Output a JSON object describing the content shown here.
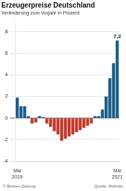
{
  "chart_data": {
    "type": "bar",
    "title": "Erzeugerpreise Deutschland",
    "subtitle": "Veränderung zum Vorjahr in Prozent",
    "categories": [
      "Mai\n2019",
      null,
      null,
      null,
      null,
      null,
      null,
      null,
      null,
      null,
      null,
      null,
      null,
      null,
      null,
      null,
      null,
      null,
      null,
      null,
      null,
      null,
      null,
      null,
      null,
      null,
      null,
      "Mai\n2021"
    ],
    "values": [
      1.9,
      1.1,
      1.1,
      0.2,
      -0.5,
      -0.4,
      0.2,
      0.1,
      -0.5,
      -0.8,
      -1.2,
      -1.5,
      -2.1,
      -1.9,
      -1.7,
      -1.5,
      -1.3,
      -1.1,
      -0.9,
      -0.7,
      -0.5,
      0.2,
      0.2,
      0.8,
      2.0,
      3.7,
      5.1,
      7.2
    ],
    "value_labels": [
      null,
      null,
      null,
      null,
      null,
      null,
      null,
      null,
      null,
      null,
      null,
      null,
      null,
      null,
      null,
      null,
      null,
      null,
      null,
      null,
      null,
      null,
      null,
      null,
      null,
      null,
      null,
      "7,2"
    ],
    "colors": [
      "#1a5e8a",
      "#1a5e8a",
      "#1a5e8a",
      "#1a5e8a",
      "#c1392b",
      "#c1392b",
      "#1a5e8a",
      "#1a5e8a",
      "#c1392b",
      "#c1392b",
      "#c1392b",
      "#c1392b",
      "#c1392b",
      "#c1392b",
      "#c1392b",
      "#c1392b",
      "#c1392b",
      "#c1392b",
      "#c1392b",
      "#c1392b",
      "#c1392b",
      "#1a5e8a",
      "#1a5e8a",
      "#1a5e8a",
      "#1a5e8a",
      "#1a5e8a",
      "#1a5e8a",
      "#1a5e8a"
    ],
    "ylim": [
      -4,
      8.8
    ],
    "yticks": [
      -4,
      -2,
      0,
      2,
      4,
      6,
      8
    ],
    "grid": true,
    "annotations": [
      "© Börsen-Zeitung",
      "Quelle: Refinitiv"
    ]
  }
}
